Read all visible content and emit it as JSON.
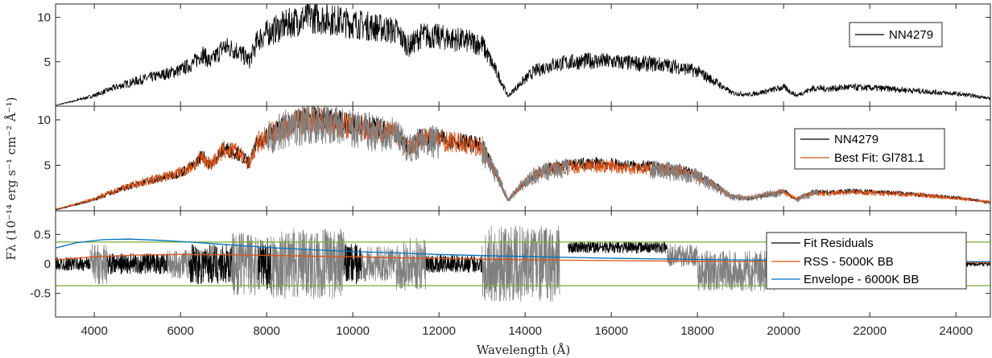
{
  "colors": {
    "observed": "#000000",
    "model": "#D95319",
    "masked": "#808080",
    "envelope": "#0072BD",
    "threshold": "#77AC30",
    "axis": "#262626"
  },
  "chart_data": {
    "type": "line",
    "xlabel": "Wavelength (Å)",
    "ylabel": "Fλ (10⁻¹⁴ erg s⁻¹ cm⁻² Å⁻¹)",
    "xlim": [
      3100,
      24800
    ],
    "x_ticks": [
      "4000",
      "6000",
      "8000",
      "10000",
      "12000",
      "14000",
      "16000",
      "18000",
      "20000",
      "22000",
      "24000"
    ],
    "x_tick_values": [
      4000,
      6000,
      8000,
      10000,
      12000,
      14000,
      16000,
      18000,
      20000,
      22000,
      24000
    ],
    "panels": [
      {
        "ylim": [
          0,
          11.5
        ],
        "y_ticks": [
          "5",
          "10"
        ],
        "y_tick_values": [
          5,
          10
        ],
        "legend": [
          "NN4279"
        ],
        "series": [
          {
            "name": "NN4279",
            "x": [
              3100,
              3500,
              4000,
              4500,
              5000,
              5500,
              6000,
              6300,
              6500,
              6700,
              7000,
              7300,
              7600,
              7800,
              8000,
              8500,
              9000,
              9500,
              10000,
              10500,
              11000,
              11300,
              11600,
              12000,
              12500,
              13000,
              13400,
              13600,
              13900,
              14200,
              14600,
              15000,
              15500,
              16000,
              16500,
              17000,
              17500,
              18000,
              18400,
              18800,
              19200,
              19600,
              20000,
              20300,
              20700,
              21000,
              21500,
              22000,
              22500,
              23000,
              23500,
              24000,
              24500,
              24800
            ],
            "y": [
              0.1,
              0.6,
              1.3,
              2.3,
              3.1,
              3.7,
              4.4,
              5.2,
              6.4,
              5.3,
              7.2,
              6.8,
              5.5,
              8.1,
              8.8,
              10.0,
              10.8,
              10.5,
              10.0,
              9.6,
              9.1,
              7.2,
              8.6,
              8.4,
              8.0,
              7.5,
              3.5,
              1.2,
              2.8,
              4.2,
              5.0,
              5.3,
              5.5,
              5.4,
              5.2,
              5.1,
              4.8,
              4.2,
              3.0,
              1.6,
              1.4,
              1.8,
              2.3,
              1.3,
              2.2,
              2.1,
              2.3,
              2.2,
              2.1,
              1.9,
              1.7,
              1.5,
              1.2,
              0.9
            ]
          }
        ]
      },
      {
        "ylim": [
          0,
          11.5
        ],
        "y_ticks": [
          "5",
          "10"
        ],
        "y_tick_values": [
          5,
          10
        ],
        "legend": [
          "NN4279",
          "Best Fit: Gl781.1"
        ],
        "series": [
          {
            "name": "Best Fit: Gl781.1",
            "x": [
              3100,
              3500,
              4000,
              4500,
              5000,
              5500,
              6000,
              6300,
              6500,
              6700,
              7000,
              7300,
              7600,
              7800,
              8000,
              8500,
              9000,
              9500,
              10000,
              10500,
              11000,
              11300,
              11600,
              12000,
              12500,
              13000,
              13400,
              13600,
              13900,
              14200,
              14600,
              15000,
              15500,
              16000,
              16500,
              17000,
              17500,
              18000,
              18400,
              18800,
              19200,
              19600,
              20000,
              20300,
              20700,
              21000,
              21500,
              22000,
              22500,
              23000,
              23500,
              24000,
              24500,
              24800
            ],
            "y": [
              0.2,
              0.7,
              1.4,
              2.4,
              3.2,
              3.8,
              4.5,
              5.3,
              6.3,
              5.4,
              7.1,
              6.9,
              5.6,
              8.0,
              8.7,
              10.0,
              10.7,
              10.4,
              9.9,
              9.5,
              9.0,
              7.3,
              8.5,
              8.3,
              7.9,
              7.4,
              3.6,
              1.3,
              2.9,
              4.2,
              4.9,
              5.1,
              5.3,
              5.2,
              5.0,
              4.9,
              4.7,
              4.1,
              2.9,
              1.7,
              1.5,
              1.9,
              2.2,
              1.4,
              2.1,
              2.0,
              2.2,
              2.1,
              2.0,
              1.9,
              1.7,
              1.5,
              1.2,
              1.0
            ]
          }
        ],
        "masked_ranges": [
          [
            8000,
            9800
          ],
          [
            9900,
            12000
          ],
          [
            13000,
            15000
          ],
          [
            16900,
            20000
          ],
          [
            20300,
            20800
          ]
        ]
      },
      {
        "ylim": [
          -0.9,
          0.9
        ],
        "y_ticks": [
          "-0.5",
          "0",
          "0.5"
        ],
        "y_tick_values": [
          -0.5,
          0,
          0.5
        ],
        "legend": [
          "Fit Residuals",
          "RSS - 5000K BB",
          "Envelope - 6000K BB"
        ],
        "thresholds": [
          0.37,
          -0.37
        ],
        "series": [
          {
            "name": "RSS - 5000K BB",
            "x": [
              3100,
              4000,
              5000,
              6000,
              7000,
              8000,
              9000,
              10000,
              11000,
              12000,
              13000,
              14000,
              16000,
              18000,
              20000,
              22000,
              24000,
              24800
            ],
            "y": [
              0.07,
              0.12,
              0.15,
              0.16,
              0.155,
              0.145,
              0.13,
              0.12,
              0.105,
              0.09,
              0.08,
              0.07,
              0.055,
              0.045,
              0.035,
              0.03,
              0.025,
              0.02
            ]
          },
          {
            "name": "Envelope - 6000K BB",
            "x": [
              3100,
              3600,
              4200,
              4800,
              5500,
              6200,
              7000,
              8000,
              9000,
              10000,
              11000,
              12000,
              13000,
              14000,
              16000,
              18000,
              20000,
              22000,
              24000,
              24800
            ],
            "y": [
              0.27,
              0.36,
              0.41,
              0.42,
              0.4,
              0.37,
              0.33,
              0.28,
              0.24,
              0.21,
              0.185,
              0.16,
              0.14,
              0.125,
              0.095,
              0.075,
              0.06,
              0.05,
              0.04,
              0.035
            ]
          }
        ],
        "residual_bands": [
          {
            "x": [
              3100,
              3900
            ],
            "amp": 0.12,
            "color": "observed"
          },
          {
            "x": [
              3900,
              4300
            ],
            "amp": 0.35,
            "color": "masked"
          },
          {
            "x": [
              4300,
              5700
            ],
            "amp": 0.18,
            "color": "observed"
          },
          {
            "x": [
              5700,
              6200
            ],
            "amp": 0.25,
            "color": "masked"
          },
          {
            "x": [
              6200,
              7200
            ],
            "amp": 0.35,
            "color": "observed"
          },
          {
            "x": [
              7200,
              7800
            ],
            "amp": 0.55,
            "color": "masked"
          },
          {
            "x": [
              7800,
              8100
            ],
            "amp": 0.45,
            "color": "observed"
          },
          {
            "x": [
              8100,
              9800
            ],
            "amp": 0.6,
            "color": "masked"
          },
          {
            "x": [
              9800,
              10200
            ],
            "amp": 0.35,
            "color": "observed"
          },
          {
            "x": [
              10200,
              11000
            ],
            "amp": 0.3,
            "color": "masked"
          },
          {
            "x": [
              11000,
              11700
            ],
            "amp": 0.45,
            "color": "masked"
          },
          {
            "x": [
              11700,
              13000
            ],
            "amp": 0.15,
            "color": "observed"
          },
          {
            "x": [
              13000,
              14800
            ],
            "amp": 0.65,
            "color": "masked"
          },
          {
            "x": [
              15000,
              17300
            ],
            "amp": 0.1,
            "color": "observed",
            "offset": 0.28
          },
          {
            "x": [
              17300,
              18000
            ],
            "amp": 0.2,
            "color": "masked",
            "offset": 0.15
          },
          {
            "x": [
              18000,
              19800
            ],
            "amp": 0.35,
            "color": "masked",
            "offset": -0.12
          },
          {
            "x": [
              19800,
              20800
            ],
            "amp": 0.25,
            "color": "masked"
          },
          {
            "x": [
              20800,
              24800
            ],
            "amp": 0.04,
            "color": "observed"
          }
        ]
      }
    ]
  }
}
